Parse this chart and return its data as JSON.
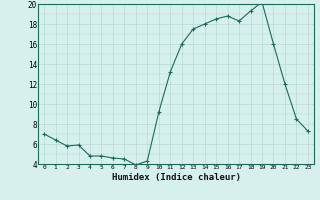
{
  "x": [
    0,
    1,
    2,
    3,
    4,
    5,
    6,
    7,
    8,
    9,
    10,
    11,
    12,
    13,
    14,
    15,
    16,
    17,
    18,
    19,
    20,
    21,
    22,
    23
  ],
  "y": [
    7.0,
    6.4,
    5.8,
    5.9,
    4.8,
    4.8,
    4.6,
    4.5,
    3.9,
    4.3,
    9.2,
    13.2,
    16.0,
    17.5,
    18.0,
    18.5,
    18.8,
    18.3,
    19.3,
    20.2,
    16.0,
    12.0,
    8.5,
    7.3
  ],
  "ylim": [
    4,
    20
  ],
  "yticks": [
    4,
    6,
    8,
    10,
    12,
    14,
    16,
    18,
    20
  ],
  "xticks": [
    0,
    1,
    2,
    3,
    4,
    5,
    6,
    7,
    8,
    9,
    10,
    11,
    12,
    13,
    14,
    15,
    16,
    17,
    18,
    19,
    20,
    21,
    22,
    23
  ],
  "xlabel": "Humidex (Indice chaleur)",
  "line_color": "#1a6b5a",
  "marker": "+",
  "marker_size": 3,
  "bg_color": "#d6f0ee",
  "grid_color": "#b8d8d4",
  "title": ""
}
